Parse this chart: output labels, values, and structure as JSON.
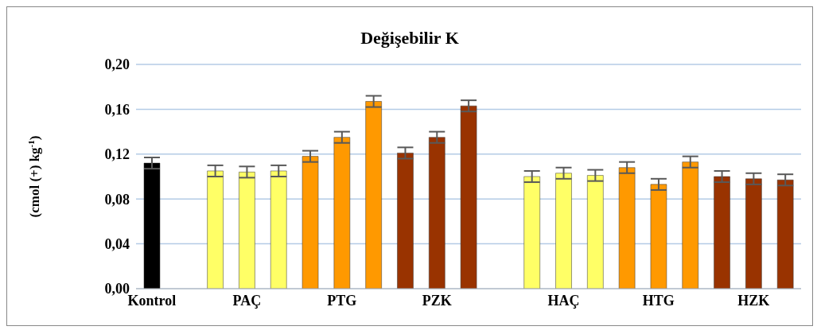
{
  "chart_data": {
    "type": "bar",
    "title": "Değişebilir K",
    "ylabel": "(cmol (+) kg$^{-1}$)",
    "categories": [
      "Kontrol",
      null,
      null,
      "PAÇ",
      null,
      null,
      "PTG",
      null,
      null,
      "PZK",
      null,
      null,
      null,
      "HAÇ",
      null,
      null,
      "HTG",
      null,
      null,
      "HZK",
      null
    ],
    "values": [
      0.112,
      null,
      0.105,
      0.104,
      0.105,
      0.118,
      0.135,
      0.167,
      0.121,
      0.135,
      0.163,
      null,
      0.1,
      0.103,
      0.101,
      0.108,
      0.093,
      0.113,
      0.1,
      0.098,
      0.097
    ],
    "errors": [
      0.005,
      null,
      0.005,
      0.005,
      0.005,
      0.005,
      0.005,
      0.005,
      0.005,
      0.005,
      0.005,
      null,
      0.005,
      0.005,
      0.005,
      0.005,
      0.005,
      0.005,
      0.005,
      0.005,
      0.005
    ],
    "colors": [
      "#000000",
      null,
      "#ffff66",
      "#ffff66",
      "#ffff66",
      "#ff9900",
      "#ff9900",
      "#ff9900",
      "#993300",
      "#993300",
      "#993300",
      null,
      "#ffff66",
      "#ffff66",
      "#ffff66",
      "#ff9900",
      "#ff9900",
      "#ff9900",
      "#993300",
      "#993300",
      "#993300"
    ],
    "ylim": [
      0,
      0.2
    ],
    "yticks": [
      {
        "value": 0,
        "label": "0,00"
      },
      {
        "value": 0.04,
        "label": "0,04"
      },
      {
        "value": 0.08,
        "label": "0,08"
      },
      {
        "value": 0.12,
        "label": "0,12"
      },
      {
        "value": 0.16,
        "label": "0,16"
      },
      {
        "value": 0.2,
        "label": "0,20"
      }
    ],
    "grid": "y"
  }
}
